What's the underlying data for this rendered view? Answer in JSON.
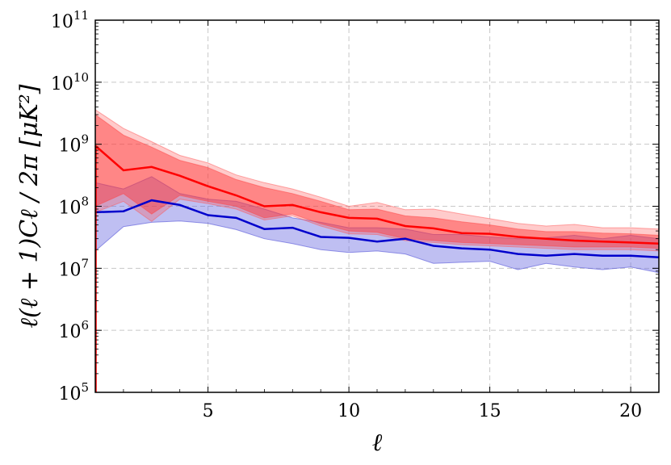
{
  "chart_data": {
    "type": "line",
    "xlabel": "ℓ",
    "ylabel": "ℓ(ℓ + 1)Cℓ / 2π [μK²]",
    "y_scale": "log",
    "xlim": [
      1,
      21
    ],
    "ylim": [
      100000,
      100000000000
    ],
    "grid": true,
    "x_ticks": [
      {
        "value": 5,
        "label": "5"
      },
      {
        "value": 10,
        "label": "10"
      },
      {
        "value": 15,
        "label": "15"
      },
      {
        "value": 20,
        "label": "20"
      }
    ],
    "y_ticks": [
      {
        "value": 100000,
        "base": "10",
        "exp": "5"
      },
      {
        "value": 1000000,
        "base": "10",
        "exp": "6"
      },
      {
        "value": 10000000,
        "base": "10",
        "exp": "7"
      },
      {
        "value": 100000000,
        "base": "10",
        "exp": "8"
      },
      {
        "value": 1000000000,
        "base": "10",
        "exp": "9"
      },
      {
        "value": 10000000000,
        "base": "10",
        "exp": "10"
      },
      {
        "value": 100000000000,
        "base": "10",
        "exp": "11"
      }
    ],
    "x": [
      1,
      2,
      3,
      4,
      5,
      6,
      7,
      8,
      9,
      10,
      11,
      12,
      13,
      14,
      15,
      16,
      17,
      18,
      19,
      20,
      21
    ],
    "series": [
      {
        "color": "#ff0000",
        "values": [
          950000000.0,
          380000000.0,
          430000000.0,
          310000000.0,
          210000000.0,
          150000000.0,
          100000000.0,
          105000000.0,
          80000000.0,
          65000000.0,
          63000000.0,
          48000000.0,
          44000000.0,
          37000000.0,
          36000000.0,
          32000000.0,
          30000000.0,
          28000000.0,
          27000000.0,
          26000000.0,
          25000000.0
        ],
        "band_outer": {
          "upper": [
            3600000000.0,
            1800000000.0,
            1100000000.0,
            660000000.0,
            500000000.0,
            320000000.0,
            240000000.0,
            190000000.0,
            140000000.0,
            100000000.0,
            115000000.0,
            88000000.0,
            90000000.0,
            75000000.0,
            63000000.0,
            53000000.0,
            48000000.0,
            51000000.0,
            45000000.0,
            45000000.0,
            43000000.0
          ],
          "lower": [
            80000000.0,
            120000000.0,
            57000000.0,
            130000000.0,
            110000000.0,
            90000000.0,
            60000000.0,
            70000000.0,
            48000000.0,
            36000000.0,
            35000000.0,
            28000000.0,
            26000000.0,
            24000000.0,
            23000000.0,
            22000000.0,
            21000000.0,
            20000000.0,
            20000000.0,
            20000000.0,
            19000000.0
          ]
        },
        "band_inner": {
          "upper": [
            3000000000.0,
            1400000000.0,
            900000000.0,
            550000000.0,
            420000000.0,
            270000000.0,
            200000000.0,
            160000000.0,
            120000000.0,
            88000000.0,
            90000000.0,
            70000000.0,
            65000000.0,
            56000000.0,
            50000000.0,
            43000000.0,
            39000000.0,
            39000000.0,
            37000000.0,
            36000000.0,
            34000000.0
          ],
          "lower": [
            100000000.0,
            160000000.0,
            75000000.0,
            150000000.0,
            120000000.0,
            100000000.0,
            65000000.0,
            75000000.0,
            52000000.0,
            40000000.0,
            38000000.0,
            30000000.0,
            28000000.0,
            26000000.0,
            25000000.0,
            24000000.0,
            23000000.0,
            22000000.0,
            22000000.0,
            22000000.0,
            21000000.0
          ]
        }
      },
      {
        "color": "#0000cc",
        "values": [
          80000000.0,
          83000000.0,
          125000000.0,
          105000000.0,
          72000000.0,
          65000000.0,
          43000000.0,
          45000000.0,
          32000000.0,
          31000000.0,
          27000000.0,
          30000000.0,
          23000000.0,
          21000000.0,
          20000000.0,
          17000000.0,
          16000000.0,
          17000000.0,
          16000000.0,
          16000000.0,
          15000000.0
        ],
        "band": {
          "upper": [
            240000000.0,
            190000000.0,
            300000000.0,
            160000000.0,
            130000000.0,
            120000000.0,
            90000000.0,
            65000000.0,
            55000000.0,
            45000000.0,
            45000000.0,
            43000000.0,
            35000000.0,
            35000000.0,
            32000000.0,
            30000000.0,
            31000000.0,
            34000000.0,
            30000000.0,
            34000000.0,
            30000000.0
          ],
          "lower": [
            19000000.0,
            47000000.0,
            55000000.0,
            58000000.0,
            53000000.0,
            42000000.0,
            30000000.0,
            25000000.0,
            20000000.0,
            18000000.0,
            19000000.0,
            17000000.0,
            12000000.0,
            12500000.0,
            13000000.0,
            9500000.0,
            12000000.0,
            10500000.0,
            9500000.0,
            10500000.0,
            8500000.0
          ]
        }
      }
    ]
  }
}
